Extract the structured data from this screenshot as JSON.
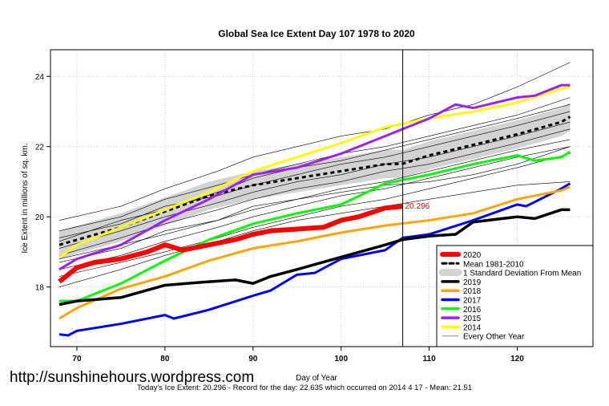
{
  "chart_data": {
    "type": "line",
    "title": "Global Sea Ice Extent Day 107 1978 to 2020",
    "xlabel": "Day of Year",
    "ylabel": "Ice Extent in millions of sq. km.",
    "xlim": [
      67,
      128.6
    ],
    "ylim": [
      16.3,
      24.76
    ],
    "xticks": [
      70,
      80,
      90,
      100,
      110,
      120
    ],
    "yticks": [
      18,
      20,
      22,
      24
    ],
    "grid": true,
    "legend_position": "bottom-right",
    "current_day": 107,
    "current_label": "20.296",
    "mean": {
      "name": "Mean 1981-2010",
      "color": "#000000",
      "x": [
        68,
        75,
        80,
        85,
        90,
        95,
        100,
        105,
        107,
        110,
        115,
        120,
        125,
        126
      ],
      "y": [
        19.2,
        19.7,
        20.15,
        20.6,
        20.9,
        21.1,
        21.3,
        21.5,
        21.51,
        21.75,
        22.05,
        22.35,
        22.7,
        22.85
      ]
    },
    "sd_band": {
      "name": "1 Standard Deviation From Mean",
      "color": "#d3d3d3",
      "width": 0.4
    },
    "series": [
      {
        "name": "2020",
        "color": "#ff0000",
        "width": 6,
        "x": [
          68,
          70,
          72,
          75,
          78,
          80,
          82,
          85,
          88,
          90,
          92,
          95,
          98,
          100,
          102,
          105,
          107
        ],
        "y": [
          18.15,
          18.55,
          18.7,
          18.8,
          19.0,
          19.2,
          19.05,
          19.2,
          19.35,
          19.5,
          19.6,
          19.65,
          19.7,
          19.9,
          20.0,
          20.25,
          20.296
        ]
      },
      {
        "name": "2019",
        "color": "#000000",
        "width": 3.5,
        "x": [
          68,
          70,
          75,
          80,
          85,
          88,
          90,
          92,
          95,
          100,
          105,
          107,
          110,
          113,
          115,
          120,
          122,
          125,
          126
        ],
        "y": [
          17.5,
          17.6,
          17.7,
          18.05,
          18.15,
          18.2,
          18.1,
          18.3,
          18.5,
          18.85,
          19.2,
          19.35,
          19.45,
          19.5,
          19.85,
          20.0,
          19.95,
          20.2,
          20.2
        ]
      },
      {
        "name": "2018",
        "color": "#ffa500",
        "width": 3,
        "x": [
          68,
          70,
          75,
          80,
          85,
          90,
          95,
          100,
          105,
          110,
          115,
          120,
          125,
          126
        ],
        "y": [
          17.1,
          17.4,
          17.95,
          18.3,
          18.75,
          19.1,
          19.3,
          19.55,
          19.75,
          19.9,
          20.1,
          20.5,
          20.75,
          20.85
        ]
      },
      {
        "name": "2017",
        "color": "#0000ff",
        "width": 3,
        "x": [
          68,
          69,
          70,
          75,
          80,
          81,
          85,
          90,
          92,
          95,
          97,
          100,
          105,
          107,
          110,
          115,
          120,
          121,
          125,
          126
        ],
        "y": [
          16.65,
          16.62,
          16.75,
          16.95,
          17.2,
          17.1,
          17.35,
          17.75,
          17.9,
          18.35,
          18.4,
          18.8,
          19.05,
          19.4,
          19.5,
          19.9,
          20.35,
          20.3,
          20.8,
          20.95
        ]
      },
      {
        "name": "2016",
        "color": "#00ff00",
        "width": 3,
        "x": [
          68,
          70,
          72,
          75,
          80,
          85,
          90,
          95,
          100,
          105,
          110,
          115,
          120,
          122,
          125,
          126
        ],
        "y": [
          17.6,
          17.6,
          17.8,
          18.1,
          18.75,
          19.35,
          19.8,
          20.1,
          20.35,
          20.95,
          21.2,
          21.5,
          21.75,
          21.6,
          21.7,
          21.85
        ]
      },
      {
        "name": "2015",
        "color": "#a020f0",
        "width": 3,
        "x": [
          68,
          70,
          75,
          80,
          85,
          90,
          95,
          100,
          105,
          110,
          113,
          115,
          120,
          122,
          125,
          126
        ],
        "y": [
          18.5,
          18.8,
          19.2,
          19.9,
          20.5,
          21.2,
          21.4,
          21.8,
          22.3,
          22.8,
          23.2,
          23.1,
          23.4,
          23.45,
          23.75,
          23.75
        ]
      },
      {
        "name": "2014",
        "color": "#ffff00",
        "width": 3,
        "x": [
          68,
          70,
          75,
          80,
          85,
          90,
          95,
          100,
          105,
          110,
          115,
          120,
          125,
          126
        ],
        "y": [
          18.85,
          19.2,
          19.7,
          20.2,
          20.7,
          21.3,
          21.7,
          22.1,
          22.55,
          22.8,
          23.0,
          23.25,
          23.65,
          23.7
        ]
      }
    ],
    "every_other_year": {
      "name": "Every Other Year",
      "color": "#000000",
      "x": [
        68,
        75,
        80,
        86,
        90,
        95,
        100,
        105,
        110,
        115,
        120,
        126
      ],
      "lines": [
        [
          19.9,
          20.3,
          20.8,
          21.3,
          21.7,
          22.0,
          22.3,
          22.5,
          22.9,
          23.2,
          23.7,
          24.4
        ],
        [
          19.6,
          20.0,
          20.5,
          20.9,
          21.2,
          21.5,
          21.8,
          22.0,
          22.3,
          22.6,
          22.9,
          23.4
        ],
        [
          19.4,
          19.8,
          20.3,
          20.6,
          20.9,
          21.2,
          21.5,
          21.7,
          22.0,
          22.3,
          22.6,
          23.0
        ],
        [
          19.1,
          19.6,
          20.0,
          20.4,
          20.7,
          21.0,
          21.2,
          21.5,
          21.7,
          22.0,
          22.3,
          22.7
        ],
        [
          18.9,
          19.4,
          19.8,
          20.2,
          20.5,
          20.8,
          21.0,
          21.3,
          21.5,
          21.8,
          22.1,
          22.5
        ],
        [
          18.7,
          19.1,
          19.6,
          19.9,
          20.2,
          20.5,
          20.8,
          21.0,
          21.3,
          21.6,
          21.9,
          22.2
        ],
        [
          18.5,
          18.9,
          19.3,
          19.7,
          20.0,
          20.3,
          20.6,
          20.8,
          21.1,
          21.4,
          21.7,
          22.0
        ],
        [
          18.3,
          18.7,
          19.0,
          19.4,
          19.7,
          20.0,
          20.3,
          20.5,
          20.8,
          21.1,
          21.4,
          21.8
        ],
        [
          19.3,
          19.9,
          20.2,
          20.7,
          21.1,
          21.4,
          21.6,
          21.9,
          22.2,
          22.5,
          22.8,
          23.2
        ],
        [
          18.8,
          19.2,
          19.5,
          19.9,
          20.3,
          20.5,
          20.7,
          20.9,
          21.0,
          21.2,
          21.5,
          22.0
        ],
        [
          18.0,
          18.5,
          18.9,
          19.3,
          19.6,
          19.9,
          20.1,
          20.3,
          20.5,
          20.7,
          20.9,
          21.0
        ]
      ]
    }
  },
  "watermark": "http://sunshinehours.wordpress.com",
  "footer": "Today's Ice Extent: 20.296  - Record for the day: 22.635 which occurred on 2014 4 17  - Mean: 21.51"
}
